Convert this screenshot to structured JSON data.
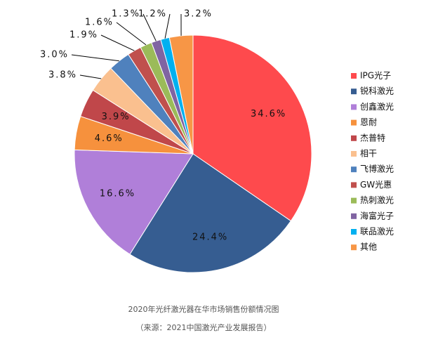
{
  "chart_data": {
    "type": "pie",
    "categories": [
      "IPG光子",
      "锐科激光",
      "创鑫激光",
      "恩耐",
      "杰普特",
      "相干",
      "飞博激光",
      "GW光惠",
      "热刺激光",
      "海富光子",
      "联品激光",
      "其他"
    ],
    "values": [
      34.6,
      24.4,
      16.6,
      4.6,
      3.9,
      3.8,
      3.0,
      1.9,
      1.6,
      1.3,
      1.2,
      3.2
    ],
    "value_labels": [
      "34.6%",
      "24.4%",
      "16.6%",
      "4.6%",
      "3.9%",
      "3.8%",
      "3.0%",
      "1.9%",
      "1.6%",
      "1.3%",
      "1.2%",
      "3.2%"
    ],
    "colors": [
      "#fe4a4d",
      "#365d91",
      "#b07fd9",
      "#f6913d",
      "#c0474a",
      "#fac08f",
      "#4f81bd",
      "#c0504d",
      "#9bbb59",
      "#8064a2",
      "#00b0f0",
      "#f79646"
    ],
    "caption": "2020年光纤激光器在华市场销售份额情况图",
    "source": "（来源：2021中国激光产业发展报告）"
  }
}
